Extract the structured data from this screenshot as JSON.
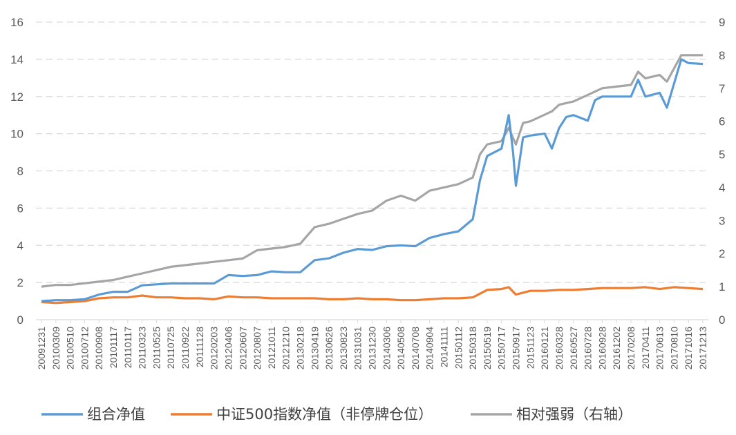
{
  "chart_data": {
    "type": "line",
    "title": "",
    "xlabel": "",
    "ylabel": "",
    "y_left": {
      "ylim": [
        0,
        16
      ],
      "ticks": [
        "0",
        "2",
        "4",
        "6",
        "8",
        "10",
        "12",
        "14",
        "16"
      ]
    },
    "y_right": {
      "ylim": [
        0,
        9
      ],
      "ticks": [
        "0",
        "1",
        "2",
        "3",
        "4",
        "5",
        "6",
        "7",
        "8",
        "9"
      ]
    },
    "grid": "horizontal dashed",
    "legend_position": "bottom",
    "x_ticks": [
      "20091231",
      "20100309",
      "20100510",
      "20100712",
      "20100908",
      "20101117",
      "20110117",
      "20110323",
      "20110525",
      "20110725",
      "20110922",
      "20111128",
      "20120203",
      "20120406",
      "20120607",
      "20120807",
      "20121011",
      "20121210",
      "20130218",
      "20130419",
      "20130626",
      "20130823",
      "20131031",
      "20131230",
      "20140306",
      "20140508",
      "20140708",
      "20140904",
      "20141111",
      "20150112",
      "20150318",
      "20150519",
      "20150717",
      "20150917",
      "20151123",
      "20160121",
      "20160328",
      "20160527",
      "20160728",
      "20160928",
      "20161202",
      "20170208",
      "20170411",
      "20170613",
      "20170810",
      "20171016",
      "20171213"
    ],
    "series": [
      {
        "name": "组合净值",
        "axis": "left",
        "color": "#5B9BD5",
        "points": [
          [
            0,
            1.0
          ],
          [
            1,
            1.05
          ],
          [
            2,
            1.05
          ],
          [
            3,
            1.1
          ],
          [
            4,
            1.35
          ],
          [
            5,
            1.5
          ],
          [
            6,
            1.5
          ],
          [
            7,
            1.85
          ],
          [
            8,
            1.9
          ],
          [
            9,
            1.95
          ],
          [
            10,
            1.95
          ],
          [
            11,
            1.95
          ],
          [
            12,
            1.95
          ],
          [
            13,
            2.4
          ],
          [
            14,
            2.35
          ],
          [
            15,
            2.4
          ],
          [
            16,
            2.6
          ],
          [
            17,
            2.55
          ],
          [
            18,
            2.55
          ],
          [
            19,
            3.2
          ],
          [
            20,
            3.3
          ],
          [
            21,
            3.6
          ],
          [
            22,
            3.8
          ],
          [
            23,
            3.75
          ],
          [
            24,
            3.95
          ],
          [
            25,
            4.0
          ],
          [
            26,
            3.95
          ],
          [
            27,
            4.4
          ],
          [
            28,
            4.6
          ],
          [
            29,
            4.75
          ],
          [
            30,
            5.4
          ],
          [
            30.5,
            7.5
          ],
          [
            31,
            8.8
          ],
          [
            31.5,
            9.0
          ],
          [
            32,
            9.2
          ],
          [
            32.5,
            11.0
          ],
          [
            32.8,
            9.0
          ],
          [
            33,
            7.2
          ],
          [
            33.5,
            9.8
          ],
          [
            34,
            9.9
          ],
          [
            35,
            10.0
          ],
          [
            35.5,
            9.2
          ],
          [
            36,
            10.3
          ],
          [
            36.5,
            10.9
          ],
          [
            37,
            11.0
          ],
          [
            38,
            10.7
          ],
          [
            38.5,
            11.8
          ],
          [
            39,
            12.0
          ],
          [
            40,
            12.0
          ],
          [
            41,
            12.0
          ],
          [
            41.5,
            12.9
          ],
          [
            42,
            12.0
          ],
          [
            43,
            12.2
          ],
          [
            43.5,
            11.4
          ],
          [
            44,
            12.7
          ],
          [
            44.5,
            14.0
          ],
          [
            45,
            13.8
          ],
          [
            46,
            13.75
          ]
        ]
      },
      {
        "name": "中证500指数净值（非停牌仓位）",
        "axis": "left",
        "color": "#ED7D31",
        "points": [
          [
            0,
            0.95
          ],
          [
            1,
            0.9
          ],
          [
            3,
            1.0
          ],
          [
            4,
            1.15
          ],
          [
            5,
            1.2
          ],
          [
            6,
            1.2
          ],
          [
            7,
            1.3
          ],
          [
            8,
            1.2
          ],
          [
            9,
            1.2
          ],
          [
            10,
            1.15
          ],
          [
            11,
            1.15
          ],
          [
            12,
            1.1
          ],
          [
            13,
            1.25
          ],
          [
            14,
            1.2
          ],
          [
            15,
            1.2
          ],
          [
            16,
            1.15
          ],
          [
            17,
            1.15
          ],
          [
            18,
            1.15
          ],
          [
            19,
            1.15
          ],
          [
            20,
            1.1
          ],
          [
            21,
            1.1
          ],
          [
            22,
            1.15
          ],
          [
            23,
            1.1
          ],
          [
            24,
            1.1
          ],
          [
            25,
            1.05
          ],
          [
            26,
            1.05
          ],
          [
            27,
            1.1
          ],
          [
            28,
            1.15
          ],
          [
            29,
            1.15
          ],
          [
            30,
            1.2
          ],
          [
            31,
            1.6
          ],
          [
            32,
            1.65
          ],
          [
            32.5,
            1.75
          ],
          [
            33,
            1.35
          ],
          [
            34,
            1.55
          ],
          [
            35,
            1.55
          ],
          [
            36,
            1.6
          ],
          [
            37,
            1.6
          ],
          [
            38,
            1.65
          ],
          [
            39,
            1.7
          ],
          [
            40,
            1.7
          ],
          [
            41,
            1.7
          ],
          [
            42,
            1.75
          ],
          [
            43,
            1.65
          ],
          [
            44,
            1.75
          ],
          [
            45,
            1.7
          ],
          [
            46,
            1.65
          ]
        ]
      },
      {
        "name": "相对强弱（右轴）",
        "axis": "right",
        "color": "#A5A5A5",
        "points": [
          [
            0,
            1.0
          ],
          [
            1,
            1.05
          ],
          [
            2,
            1.05
          ],
          [
            3,
            1.1
          ],
          [
            4,
            1.15
          ],
          [
            5,
            1.2
          ],
          [
            6,
            1.3
          ],
          [
            7,
            1.4
          ],
          [
            8,
            1.5
          ],
          [
            9,
            1.6
          ],
          [
            10,
            1.65
          ],
          [
            11,
            1.7
          ],
          [
            12,
            1.75
          ],
          [
            13,
            1.8
          ],
          [
            14,
            1.85
          ],
          [
            15,
            2.1
          ],
          [
            16,
            2.15
          ],
          [
            17,
            2.2
          ],
          [
            18,
            2.3
          ],
          [
            19,
            2.8
          ],
          [
            20,
            2.9
          ],
          [
            21,
            3.05
          ],
          [
            22,
            3.2
          ],
          [
            23,
            3.3
          ],
          [
            24,
            3.6
          ],
          [
            25,
            3.75
          ],
          [
            26,
            3.6
          ],
          [
            27,
            3.9
          ],
          [
            28,
            4.0
          ],
          [
            29,
            4.1
          ],
          [
            30,
            4.3
          ],
          [
            30.5,
            5.0
          ],
          [
            31,
            5.3
          ],
          [
            32,
            5.4
          ],
          [
            32.5,
            5.8
          ],
          [
            33,
            5.3
          ],
          [
            33.5,
            5.95
          ],
          [
            34,
            6.0
          ],
          [
            35,
            6.2
          ],
          [
            35.5,
            6.3
          ],
          [
            36,
            6.5
          ],
          [
            37,
            6.6
          ],
          [
            38,
            6.8
          ],
          [
            39,
            7.0
          ],
          [
            40,
            7.05
          ],
          [
            41,
            7.1
          ],
          [
            41.5,
            7.5
          ],
          [
            42,
            7.3
          ],
          [
            43,
            7.4
          ],
          [
            43.5,
            7.2
          ],
          [
            44,
            7.6
          ],
          [
            44.5,
            8.0
          ],
          [
            45,
            8.0
          ],
          [
            46,
            8.0
          ]
        ]
      }
    ]
  }
}
